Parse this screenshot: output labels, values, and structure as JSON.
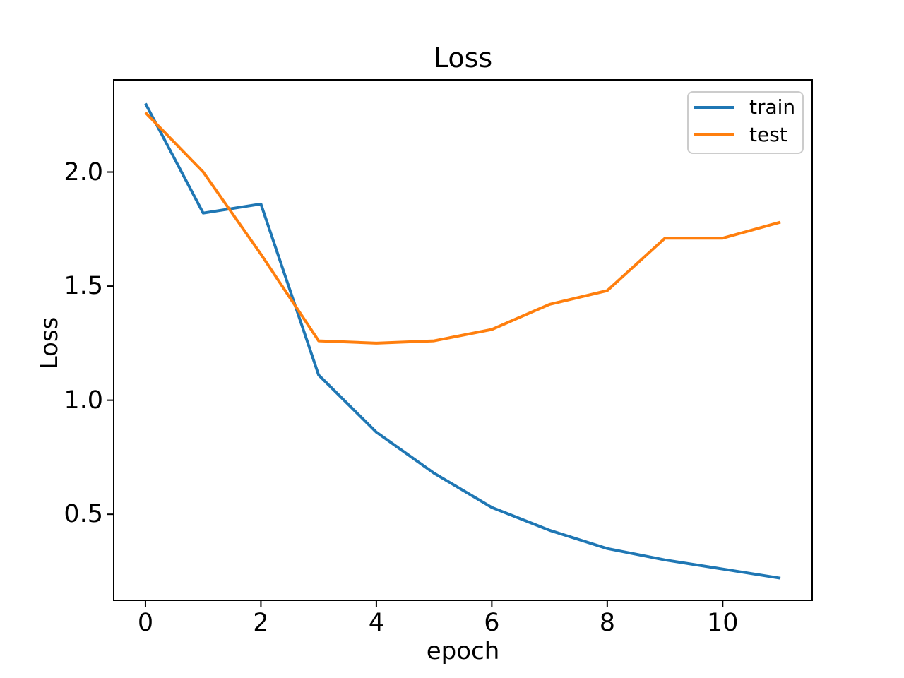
{
  "chart_data": {
    "type": "line",
    "title": "Loss",
    "xlabel": "epoch",
    "ylabel": "Loss",
    "x": [
      0,
      1,
      2,
      3,
      4,
      5,
      6,
      7,
      8,
      9,
      10,
      11
    ],
    "series": [
      {
        "name": "train",
        "color": "#1f77b4",
        "values": [
          2.3,
          1.82,
          1.86,
          1.11,
          0.86,
          0.68,
          0.53,
          0.43,
          0.35,
          0.3,
          0.26,
          0.22
        ]
      },
      {
        "name": "test",
        "color": "#ff7f0e",
        "values": [
          2.26,
          2.0,
          1.64,
          1.26,
          1.25,
          1.26,
          1.31,
          1.42,
          1.48,
          1.71,
          1.71,
          1.78
        ]
      }
    ],
    "xlim": [
      -0.55,
      11.55
    ],
    "ylim": [
      0.123,
      2.404
    ],
    "xticks": [
      0,
      2,
      4,
      6,
      8,
      10
    ],
    "xtick_labels": [
      "0",
      "2",
      "4",
      "6",
      "8",
      "10"
    ],
    "yticks": [
      0.5,
      1.0,
      1.5,
      2.0
    ],
    "ytick_labels": [
      "0.5",
      "1.0",
      "1.5",
      "2.0"
    ],
    "grid": false,
    "legend": {
      "position": "upper-right",
      "entries": [
        "train",
        "test"
      ]
    },
    "axis_color": "#000000",
    "legend_border_color": "#cccccc"
  }
}
